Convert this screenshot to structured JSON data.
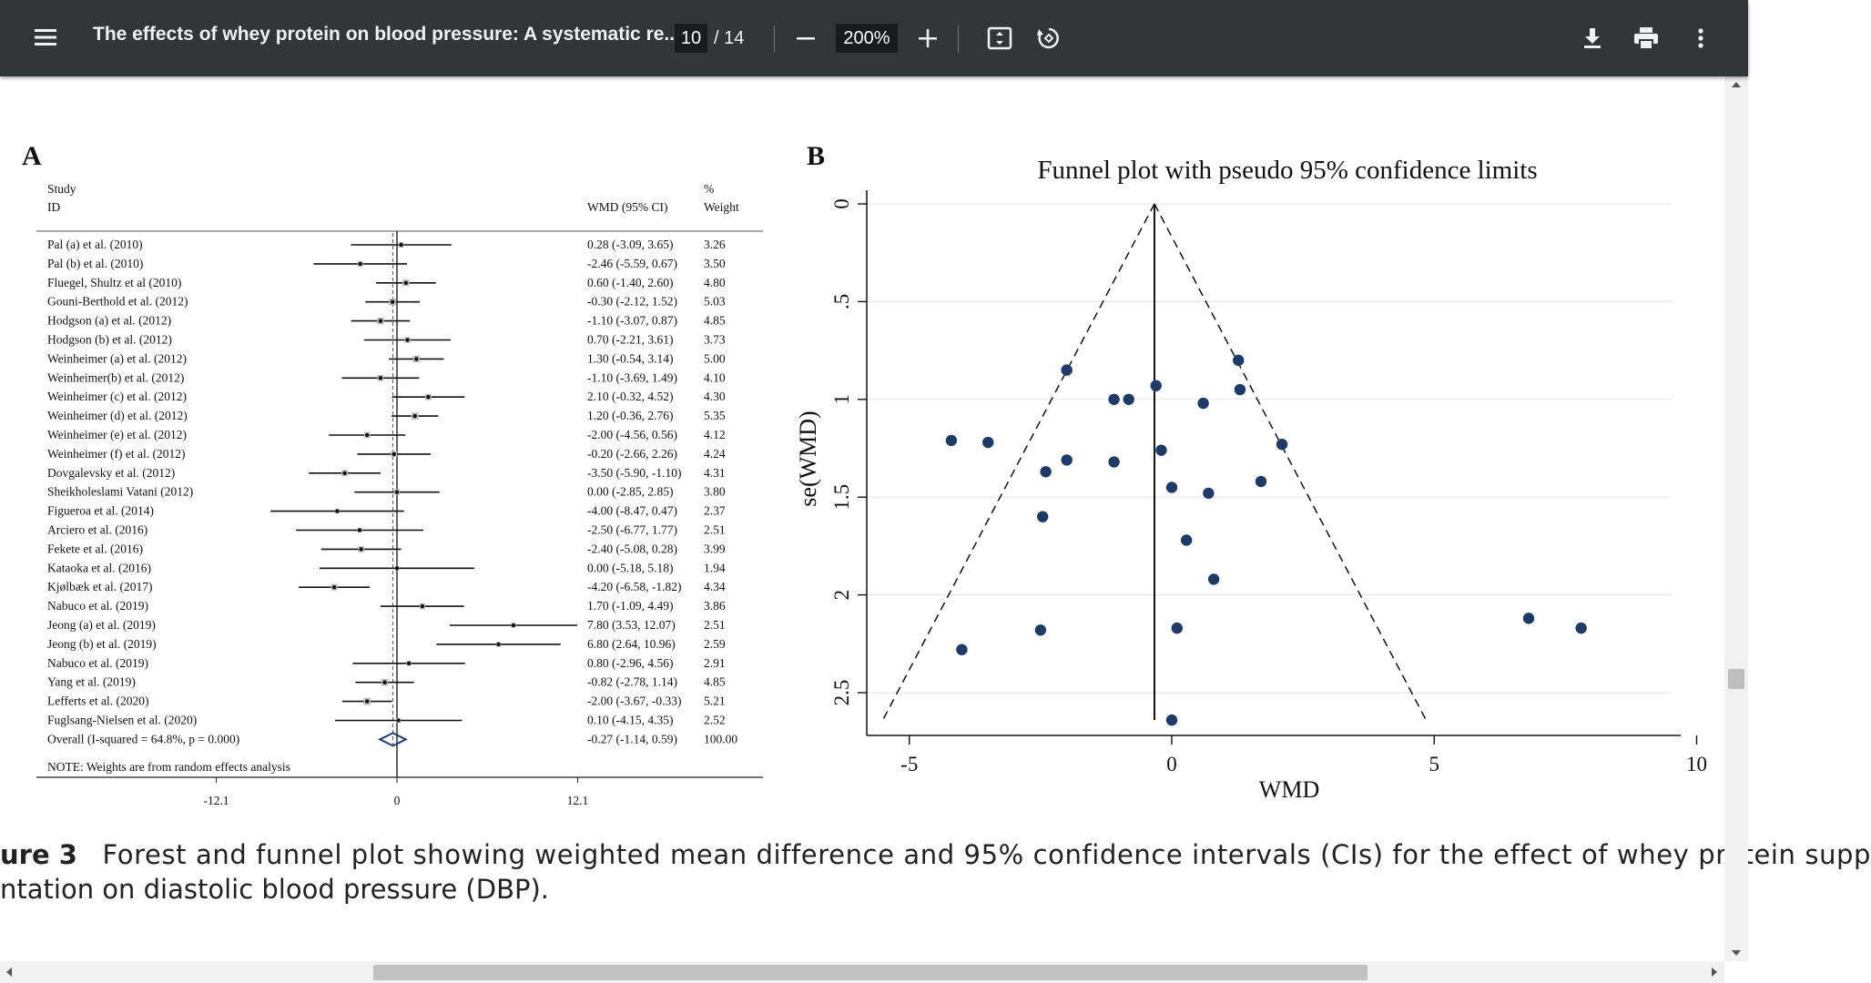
{
  "toolbar": {
    "title": "The effects of whey protein on blood pressure: A systematic re...",
    "current_page": "10",
    "page_total": "/ 14",
    "zoom": "200%",
    "icons": [
      "menu-icon",
      "zoom-out-icon",
      "zoom-in-icon",
      "fit-page-icon",
      "rotate-icon",
      "download-icon",
      "print-icon",
      "more-vert-icon"
    ]
  },
  "forest": {
    "panel_label": "A",
    "header_study": "Study",
    "header_id": "ID",
    "header_wmd": "WMD (95% CI)",
    "header_pct": "%",
    "header_weight": "Weight",
    "studies": [
      {
        "name": "Pal (a) et al.  (2010)",
        "ci": "0.28 (-3.09, 3.65)",
        "weight": "3.26",
        "est": 0.28,
        "lo": -3.09,
        "hi": 3.65
      },
      {
        "name": "Pal (b) et al.  (2010)",
        "ci": "-2.46 (-5.59, 0.67)",
        "weight": "3.50",
        "est": -2.46,
        "lo": -5.59,
        "hi": 0.67
      },
      {
        "name": "Fluegel, Shultz et al (2010)",
        "ci": "0.60 (-1.40, 2.60)",
        "weight": "4.80",
        "est": 0.6,
        "lo": -1.4,
        "hi": 2.6
      },
      {
        "name": "Gouni-Berthold et al. (2012)",
        "ci": "-0.30 (-2.12, 1.52)",
        "weight": "5.03",
        "est": -0.3,
        "lo": -2.12,
        "hi": 1.52
      },
      {
        "name": "Hodgson (a) et al.  (2012)",
        "ci": "-1.10 (-3.07, 0.87)",
        "weight": "4.85",
        "est": -1.1,
        "lo": -3.07,
        "hi": 0.87
      },
      {
        "name": "Hodgson (b) et al.  (2012)",
        "ci": "0.70 (-2.21, 3.61)",
        "weight": "3.73",
        "est": 0.7,
        "lo": -2.21,
        "hi": 3.61
      },
      {
        "name": "Weinheimer (a) et al.  (2012)",
        "ci": "1.30 (-0.54, 3.14)",
        "weight": "5.00",
        "est": 1.3,
        "lo": -0.54,
        "hi": 3.14
      },
      {
        "name": "Weinheimer(b) et al.  (2012)",
        "ci": "-1.10 (-3.69, 1.49)",
        "weight": "4.10",
        "est": -1.1,
        "lo": -3.69,
        "hi": 1.49
      },
      {
        "name": "Weinheimer (c) et al.  (2012)",
        "ci": "2.10 (-0.32, 4.52)",
        "weight": "4.30",
        "est": 2.1,
        "lo": -0.32,
        "hi": 4.52
      },
      {
        "name": "Weinheimer (d) et al.  (2012)",
        "ci": "1.20 (-0.36, 2.76)",
        "weight": "5.35",
        "est": 1.2,
        "lo": -0.36,
        "hi": 2.76
      },
      {
        "name": "Weinheimer (e) et al.  (2012)",
        "ci": "-2.00 (-4.56, 0.56)",
        "weight": "4.12",
        "est": -2.0,
        "lo": -4.56,
        "hi": 0.56
      },
      {
        "name": "Weinheimer (f) et al.  (2012)",
        "ci": "-0.20 (-2.66, 2.26)",
        "weight": "4.24",
        "est": -0.2,
        "lo": -2.66,
        "hi": 2.26
      },
      {
        "name": "Dovgalevsky et al. (2012)",
        "ci": "-3.50 (-5.90, -1.10)",
        "weight": "4.31",
        "est": -3.5,
        "lo": -5.9,
        "hi": -1.1
      },
      {
        "name": "Sheikholeslami Vatani  (2012)",
        "ci": "0.00 (-2.85, 2.85)",
        "weight": "3.80",
        "est": 0.0,
        "lo": -2.85,
        "hi": 2.85
      },
      {
        "name": "Figueroa et al. (2014)",
        "ci": "-4.00 (-8.47, 0.47)",
        "weight": "2.37",
        "est": -4.0,
        "lo": -8.47,
        "hi": 0.47
      },
      {
        "name": "Arciero et al. (2016)",
        "ci": "-2.50 (-6.77, 1.77)",
        "weight": "2.51",
        "est": -2.5,
        "lo": -6.77,
        "hi": 1.77
      },
      {
        "name": "Fekete et al. (2016)",
        "ci": "-2.40 (-5.08, 0.28)",
        "weight": "3.99",
        "est": -2.4,
        "lo": -5.08,
        "hi": 0.28
      },
      {
        "name": "Kataoka et al. (2016)",
        "ci": "0.00 (-5.18, 5.18)",
        "weight": "1.94",
        "est": 0.0,
        "lo": -5.18,
        "hi": 5.18
      },
      {
        "name": "Kjølbæk et al. (2017)",
        "ci": "-4.20 (-6.58, -1.82)",
        "weight": "4.34",
        "est": -4.2,
        "lo": -6.58,
        "hi": -1.82
      },
      {
        "name": "Nabuco  et al.  (2019)",
        "ci": "1.70 (-1.09, 4.49)",
        "weight": "3.86",
        "est": 1.7,
        "lo": -1.09,
        "hi": 4.49
      },
      {
        "name": "Jeong (a) et al. (2019)",
        "ci": "7.80 (3.53, 12.07)",
        "weight": "2.51",
        "est": 7.8,
        "lo": 3.53,
        "hi": 12.07
      },
      {
        "name": "Jeong (b) et al.  (2019)",
        "ci": "6.80 (2.64, 10.96)",
        "weight": "2.59",
        "est": 6.8,
        "lo": 2.64,
        "hi": 10.96
      },
      {
        "name": "Nabuco et al. (2019)",
        "ci": "0.80 (-2.96, 4.56)",
        "weight": "2.91",
        "est": 0.8,
        "lo": -2.96,
        "hi": 4.56
      },
      {
        "name": "Yang et al. (2019)",
        "ci": "-0.82 (-2.78, 1.14)",
        "weight": "4.85",
        "est": -0.82,
        "lo": -2.78,
        "hi": 1.14
      },
      {
        "name": "Lefferts et al. (2020)",
        "ci": "-2.00 (-3.67, -0.33)",
        "weight": "5.21",
        "est": -2.0,
        "lo": -3.67,
        "hi": -0.33
      },
      {
        "name": "Fuglsang-Nielsen et al. (2020)",
        "ci": "0.10 (-4.15, 4.35)",
        "weight": "2.52",
        "est": 0.1,
        "lo": -4.15,
        "hi": 4.35
      }
    ],
    "overall": {
      "name": "Overall  (I-squared = 64.8%, p = 0.000)",
      "ci": "-0.27 (-1.14, 0.59)",
      "weight": "100.00",
      "est": -0.27,
      "lo": -1.14,
      "hi": 0.59
    },
    "note": "NOTE: Weights are from random effects analysis",
    "axis_ticks": [
      "-12.1",
      "0",
      "12.1"
    ]
  },
  "chart_data": [
    {
      "type": "forest",
      "title": "",
      "xlabel": "WMD (95% CI)",
      "xlim": [
        -12.1,
        12.1
      ],
      "categories_source": "forest.studies"
    },
    {
      "type": "scatter",
      "title": "Funnel plot with pseudo 95% confidence limits",
      "panel_label": "B",
      "xlabel": "WMD",
      "ylabel": "se(WMD)",
      "x_ticks": [
        "-5",
        "0",
        "5",
        "10"
      ],
      "y_ticks": [
        "0",
        ".5",
        "1",
        "1.5",
        "2",
        "2.5"
      ],
      "xlim": [
        -6,
        10.3
      ],
      "ylim": [
        0,
        2.65
      ],
      "y_inverted": true,
      "pooled_estimate": -0.33,
      "x": [
        1.27,
        1.3,
        -2.0,
        -0.3,
        -1.1,
        -0.82,
        0.6,
        -4.2,
        -3.5,
        2.1,
        -0.2,
        -2.0,
        -1.1,
        -2.4,
        1.7,
        0.0,
        0.7,
        -2.46,
        0.28,
        0.8,
        6.8,
        7.8,
        -2.5,
        0.1,
        -4.0,
        0.0
      ],
      "y": [
        0.8,
        0.95,
        0.85,
        0.93,
        1.0,
        1.0,
        1.02,
        1.21,
        1.22,
        1.23,
        1.26,
        1.31,
        1.32,
        1.37,
        1.42,
        1.45,
        1.48,
        1.6,
        1.72,
        1.92,
        2.12,
        2.17,
        2.18,
        2.17,
        2.28,
        2.64
      ]
    }
  ],
  "caption": {
    "line1_label": "ure 3",
    "line1_text": "Forest and funnel plot showing weighted mean difference and 95% confidence intervals (CIs) for the effect of whey protein supp",
    "line2_text": "ntation on diastolic blood pressure (DBP)."
  }
}
